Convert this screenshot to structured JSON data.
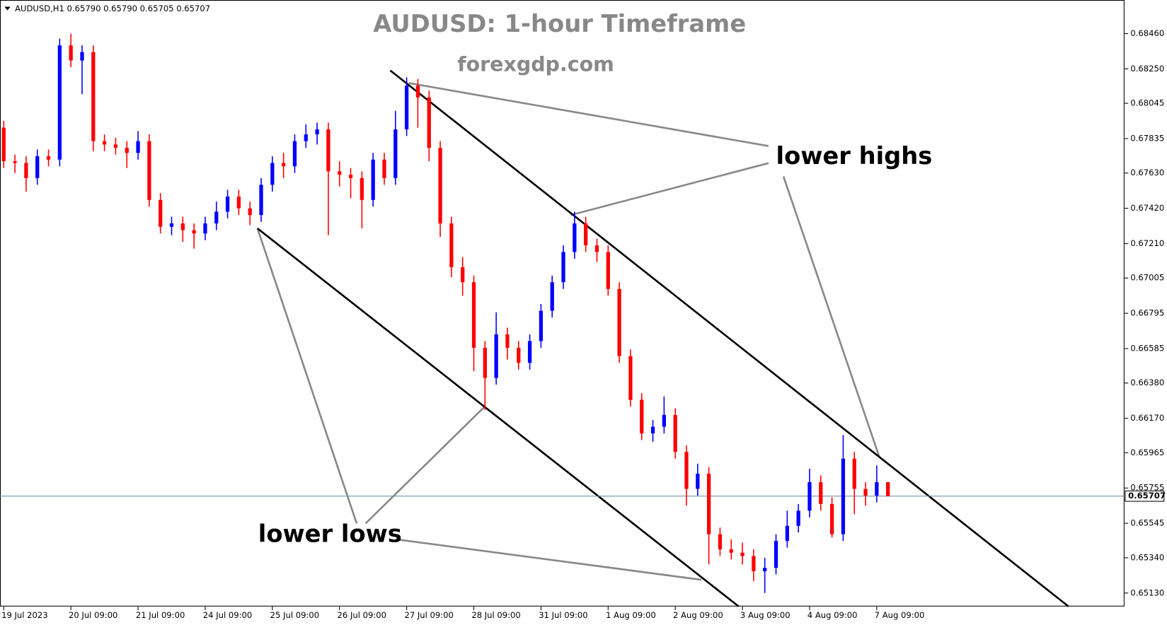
{
  "chart_data": {
    "type": "candlestick",
    "info": "AUDUSD,H1  0.65790 0.65790 0.65705 0.65707",
    "title": "AUDUSD: 1-hour Timeframe",
    "subtitle": "forexgdp.com",
    "annotations": [
      "lower highs",
      "lower lows"
    ],
    "up_color": "#0000ff",
    "down_color": "#ff0000",
    "last_price": 0.65707,
    "categories": [
      "19 Jul 2023",
      null,
      null,
      null,
      null,
      null,
      "20 Jul 09:00",
      null,
      null,
      null,
      null,
      null,
      "21 Jul 09:00",
      null,
      null,
      null,
      null,
      null,
      "24 Jul 09:00",
      null,
      null,
      null,
      null,
      null,
      "25 Jul 09:00",
      null,
      null,
      null,
      null,
      null,
      "26 Jul 09:00",
      null,
      null,
      null,
      null,
      null,
      "27 Jul 09:00",
      null,
      null,
      null,
      null,
      null,
      "28 Jul 09:00",
      null,
      null,
      null,
      null,
      null,
      "31 Jul 09:00",
      null,
      null,
      null,
      null,
      null,
      "1 Aug 09:00",
      null,
      null,
      null,
      null,
      null,
      "2 Aug 09:00",
      null,
      null,
      null,
      null,
      null,
      "3 Aug 09:00",
      null,
      null,
      null,
      null,
      null,
      "4 Aug 09:00",
      null,
      null,
      null,
      null,
      null,
      "7 Aug 09:00",
      null
    ],
    "open": [
      0.679,
      0.677,
      0.6769,
      0.676,
      0.6773,
      0.6771,
      0.6839,
      0.683,
      0.6835,
      0.6782,
      0.678,
      0.6778,
      0.6775,
      0.6782,
      0.6747,
      0.6731,
      0.6733,
      0.6729,
      0.6727,
      0.6733,
      0.674,
      0.6749,
      0.6742,
      0.6738,
      0.6756,
      0.6769,
      0.6767,
      0.6782,
      0.6786,
      0.6789,
      0.6764,
      0.6762,
      0.676,
      0.6747,
      0.6771,
      0.676,
      0.6789,
      0.6815,
      0.6808,
      0.6778,
      0.6733,
      0.6707,
      0.6698,
      0.6659,
      0.6641,
      0.6667,
      0.6659,
      0.665,
      0.6663,
      0.6681,
      0.6698,
      0.6716,
      0.6733,
      0.672,
      0.6716,
      0.6694,
      0.6654,
      0.6628,
      0.6608,
      0.6612,
      0.6619,
      0.6597,
      0.6575,
      0.6584,
      0.6548,
      0.6539,
      0.6537,
      0.6535,
      0.6526,
      0.6528,
      0.6544,
      0.6553,
      0.6562,
      0.6579,
      0.6566,
      0.6548,
      0.6593,
      0.6575,
      0.6571,
      0.6579
    ],
    "high": [
      0.6794,
      0.6774,
      0.6773,
      0.6777,
      0.6777,
      0.6843,
      0.6846,
      0.6839,
      0.6839,
      0.6786,
      0.6784,
      0.6782,
      0.6788,
      0.6786,
      0.6751,
      0.6737,
      0.6737,
      0.6733,
      0.6737,
      0.6746,
      0.6753,
      0.6753,
      0.6746,
      0.676,
      0.6773,
      0.6775,
      0.6786,
      0.6792,
      0.6793,
      0.6793,
      0.677,
      0.6766,
      0.6764,
      0.6775,
      0.6775,
      0.68,
      0.682,
      0.6819,
      0.6812,
      0.6782,
      0.6737,
      0.6713,
      0.6702,
      0.6663,
      0.668,
      0.6671,
      0.6663,
      0.6667,
      0.6685,
      0.6702,
      0.672,
      0.674,
      0.6737,
      0.6724,
      0.672,
      0.6698,
      0.6658,
      0.6632,
      0.6616,
      0.663,
      0.6623,
      0.6601,
      0.659,
      0.6588,
      0.6552,
      0.6545,
      0.6543,
      0.6539,
      0.6534,
      0.6548,
      0.6562,
      0.6566,
      0.6587,
      0.6583,
      0.657,
      0.6607,
      0.6597,
      0.6579,
      0.6589,
      0.6579
    ],
    "low": [
      0.6766,
      0.6763,
      0.6752,
      0.6756,
      0.6767,
      0.6767,
      0.6826,
      0.681,
      0.6776,
      0.6776,
      0.6774,
      0.6766,
      0.6771,
      0.6743,
      0.6727,
      0.6726,
      0.6722,
      0.6718,
      0.6723,
      0.6729,
      0.6736,
      0.6738,
      0.6732,
      0.6734,
      0.6752,
      0.676,
      0.6763,
      0.6778,
      0.678,
      0.6726,
      0.6755,
      0.6748,
      0.673,
      0.6743,
      0.6756,
      0.6756,
      0.6785,
      0.679,
      0.677,
      0.6725,
      0.6701,
      0.669,
      0.6645,
      0.6622,
      0.6637,
      0.6652,
      0.6646,
      0.6646,
      0.6659,
      0.6677,
      0.6694,
      0.6712,
      0.6716,
      0.671,
      0.669,
      0.665,
      0.6624,
      0.6604,
      0.6603,
      0.6608,
      0.6593,
      0.6565,
      0.6571,
      0.653,
      0.6535,
      0.6533,
      0.653,
      0.652,
      0.6513,
      0.6524,
      0.654,
      0.6549,
      0.6558,
      0.6562,
      0.6546,
      0.6544,
      0.656,
      0.6565,
      0.6567,
      0.65705
    ],
    "close": [
      0.677,
      0.6769,
      0.676,
      0.6773,
      0.6771,
      0.6839,
      0.683,
      0.6835,
      0.6782,
      0.678,
      0.6778,
      0.6775,
      0.6782,
      0.6747,
      0.6731,
      0.6733,
      0.6729,
      0.6727,
      0.6733,
      0.674,
      0.6749,
      0.6742,
      0.6738,
      0.6756,
      0.6769,
      0.6767,
      0.6782,
      0.6786,
      0.6789,
      0.6764,
      0.6762,
      0.676,
      0.6747,
      0.6771,
      0.676,
      0.6789,
      0.6815,
      0.6808,
      0.6778,
      0.6733,
      0.6707,
      0.6698,
      0.6659,
      0.6641,
      0.6667,
      0.6659,
      0.665,
      0.6663,
      0.6681,
      0.6698,
      0.6716,
      0.6733,
      0.672,
      0.6716,
      0.6694,
      0.6654,
      0.6628,
      0.6608,
      0.6612,
      0.6619,
      0.6597,
      0.6575,
      0.6584,
      0.6548,
      0.6539,
      0.6537,
      0.6535,
      0.6526,
      0.6528,
      0.6544,
      0.6553,
      0.6562,
      0.6579,
      0.6566,
      0.6548,
      0.6593,
      0.6575,
      0.6571,
      0.6579,
      0.65707
    ],
    "ylim": [
      0.6505,
      0.6866
    ],
    "yticks": [
      {
        "value": 0.6846,
        "label": "0.68460"
      },
      {
        "value": 0.6825,
        "label": "0.68250"
      },
      0.68045,
      0.67835,
      {
        "value": 0.6763,
        "label": "0.67630"
      },
      {
        "value": 0.6742,
        "label": "0.67420"
      },
      {
        "value": 0.6721,
        "label": "0.67210"
      },
      0.67005,
      0.66795,
      0.66585,
      {
        "value": 0.6638,
        "label": "0.66380"
      },
      {
        "value": 0.6617,
        "label": "0.66170"
      },
      0.65965,
      0.65755,
      0.65545,
      {
        "value": 0.6534,
        "label": "0.65340"
      },
      {
        "value": 0.6513,
        "label": "0.65130"
      }
    ]
  }
}
